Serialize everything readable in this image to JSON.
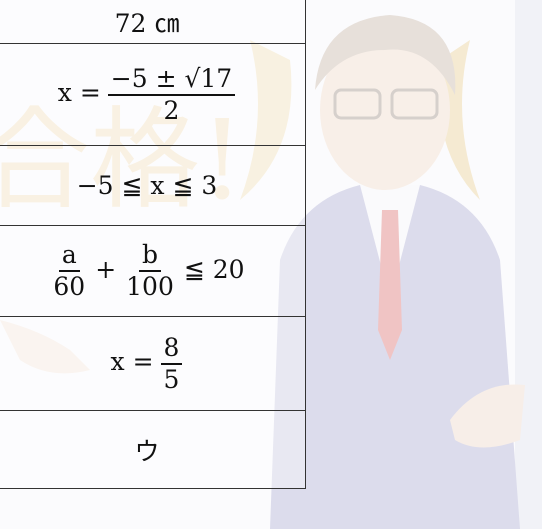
{
  "background": {
    "watermark": "合格!"
  },
  "table": {
    "rows": [
      {
        "parts": [
          "72 ㎝"
        ]
      },
      {
        "parts": [
          "x =",
          {
            "num": "−5 ± √17",
            "den": "2"
          }
        ]
      },
      {
        "parts": [
          "−5 ≦ x ≦ 3"
        ]
      },
      {
        "parts": [
          {
            "num": "a",
            "den": "60"
          },
          "+",
          {
            "num": "b",
            "den": "100"
          },
          "≦ 20"
        ]
      },
      {
        "parts": [
          "x =",
          {
            "num": "8",
            "den": "5"
          }
        ]
      },
      {
        "parts": [
          "ウ"
        ]
      }
    ]
  }
}
